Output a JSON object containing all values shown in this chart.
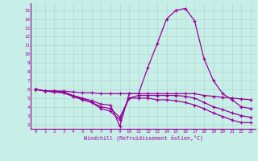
{
  "xlabel": "Windchill (Refroidissement éolien,°C)",
  "xlim": [
    -0.5,
    23.5
  ],
  "ylim": [
    1.5,
    15.8
  ],
  "xticks": [
    0,
    1,
    2,
    3,
    4,
    5,
    6,
    7,
    8,
    9,
    10,
    11,
    12,
    13,
    14,
    15,
    16,
    17,
    18,
    19,
    20,
    21,
    22,
    23
  ],
  "yticks": [
    2,
    3,
    4,
    5,
    6,
    7,
    8,
    9,
    10,
    11,
    12,
    13,
    14,
    15
  ],
  "bg_color": "#c8eee8",
  "line_color": "#990099",
  "grid_color": "#b0d8d0",
  "lines": [
    [
      6.0,
      5.8,
      5.8,
      5.8,
      5.7,
      5.6,
      5.6,
      5.5,
      5.5,
      5.5,
      5.5,
      5.5,
      5.5,
      5.5,
      5.5,
      5.5,
      5.5,
      5.5,
      5.3,
      5.2,
      5.1,
      5.0,
      4.9,
      4.8
    ],
    [
      6.0,
      5.8,
      5.8,
      5.7,
      5.3,
      5.0,
      4.7,
      4.3,
      4.2,
      1.8,
      5.5,
      5.5,
      8.5,
      11.2,
      14.0,
      15.0,
      15.2,
      13.8,
      9.5,
      7.0,
      5.5,
      4.8,
      4.0,
      3.8
    ],
    [
      6.0,
      5.8,
      5.7,
      5.6,
      5.2,
      4.9,
      4.5,
      4.0,
      3.8,
      2.8,
      5.0,
      5.3,
      5.3,
      5.3,
      5.3,
      5.3,
      5.2,
      5.0,
      4.5,
      4.0,
      3.7,
      3.3,
      3.0,
      2.8
    ],
    [
      6.0,
      5.8,
      5.7,
      5.6,
      5.2,
      4.8,
      4.5,
      3.8,
      3.5,
      2.5,
      5.0,
      5.0,
      5.0,
      4.8,
      4.8,
      4.7,
      4.5,
      4.2,
      3.8,
      3.3,
      2.9,
      2.5,
      2.2,
      2.2
    ]
  ]
}
